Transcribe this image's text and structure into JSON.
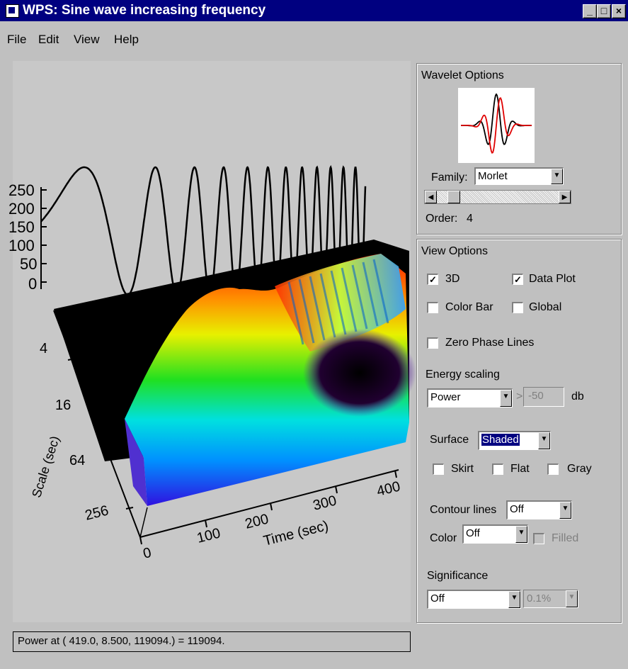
{
  "window": {
    "title": "WPS: Sine wave increasing frequency",
    "minimize_label": "_",
    "maximize_label": "□",
    "close_label": "×"
  },
  "menu": {
    "file": "File",
    "edit": "Edit",
    "view": "View",
    "help": "Help"
  },
  "plot": {
    "data_y_ticks": [
      "250",
      "200",
      "150",
      "100",
      "50",
      "0"
    ],
    "scale_ticks": [
      "4",
      "16",
      "64",
      "256"
    ],
    "time_ticks": [
      "0",
      "100",
      "200",
      "300",
      "400"
    ],
    "scale_label": "Scale (sec)",
    "time_label": "Time (sec)"
  },
  "wavelet_options": {
    "group_label": "Wavelet Options",
    "family_label": "Family:",
    "family_value": "Morlet",
    "order_label": "Order:",
    "order_value": "4",
    "order_slider_fraction": 0.1
  },
  "view_options": {
    "group_label": "View Options",
    "cb_3d": "3D",
    "cb_3d_checked": true,
    "cb_data_plot": "Data Plot",
    "cb_data_plot_checked": true,
    "cb_color_bar": "Color Bar",
    "cb_color_bar_checked": false,
    "cb_global": "Global",
    "cb_global_checked": false,
    "cb_zero_phase": "Zero Phase Lines",
    "cb_zero_phase_checked": false,
    "energy_label": "Energy scaling",
    "energy_value": "Power",
    "gt_symbol": ">",
    "db_value": "-50",
    "db_unit": "db",
    "surface_label": "Surface",
    "surface_value": "Shaded",
    "cb_skirt": "Skirt",
    "cb_flat": "Flat",
    "cb_gray": "Gray",
    "contour_label": "Contour lines",
    "contour_value": "Off",
    "color_label": "Color",
    "color_value": "Off",
    "cb_filled": "Filled",
    "significance_label": "Significance",
    "significance_value": "Off",
    "significance_level": "0.1%"
  },
  "status": {
    "text": "Power at ( 419.0, 8.500, 119094.) = 119094."
  },
  "colors": {
    "titlebar": "#000080",
    "background": "#c0c0c0"
  }
}
